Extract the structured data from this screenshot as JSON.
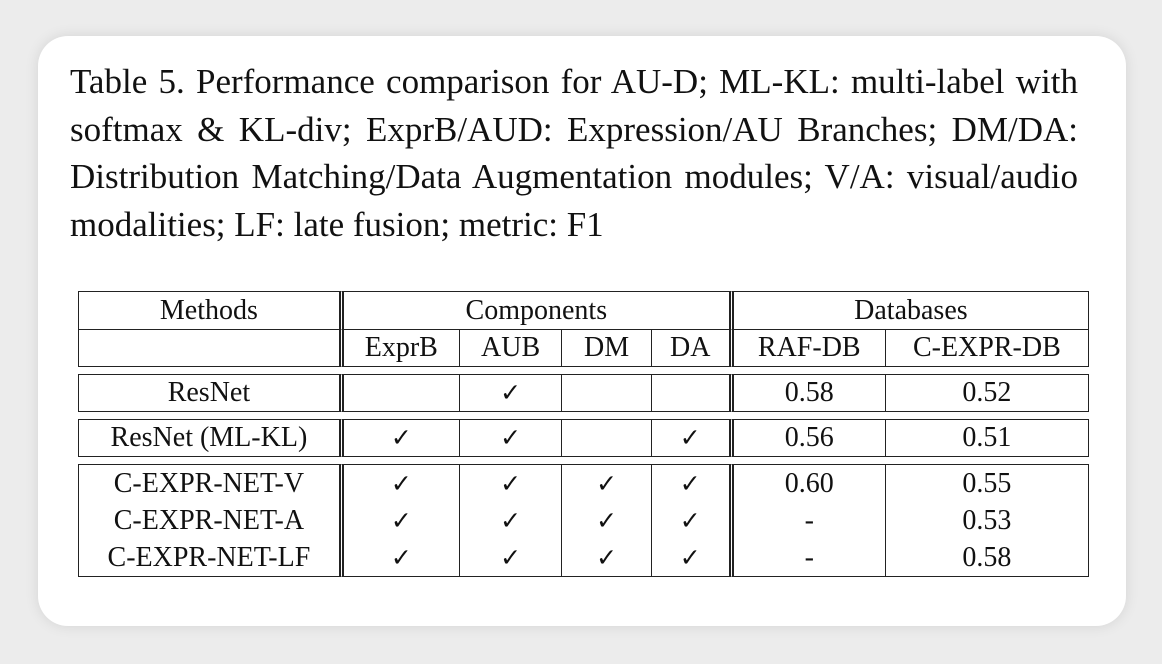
{
  "caption": "Table 5. Performance comparison for AU-D; ML-KL: multi-label with softmax & KL-div; ExprB/AUD: Expression/AU Branches; DM/DA: Distribution Matching/Data Augmentation modules; V/A: visual/audio modalities; LF: late fusion; metric: F1",
  "table": {
    "header": {
      "methods": "Methods",
      "components": "Components",
      "databases": "Databases",
      "sub": [
        "ExprB",
        "AUB",
        "DM",
        "DA",
        "RAF-DB",
        "C-EXPR-DB"
      ]
    },
    "check": "✓",
    "rows": [
      {
        "method": "ResNet",
        "exprb": "",
        "aub": "✓",
        "dm": "",
        "da": "",
        "raf": "0.58",
        "cexpr": "0.52"
      },
      {
        "method": "ResNet (ML-KL)",
        "exprb": "✓",
        "aub": "✓",
        "dm": "",
        "da": "✓",
        "raf": "0.56",
        "cexpr": "0.51"
      },
      {
        "method": "C-EXPR-NET-V",
        "exprb": "✓",
        "aub": "✓",
        "dm": "✓",
        "da": "✓",
        "raf": "0.60",
        "cexpr": "0.55"
      },
      {
        "method": "C-EXPR-NET-A",
        "exprb": "✓",
        "aub": "✓",
        "dm": "✓",
        "da": "✓",
        "raf": "-",
        "cexpr": "0.53"
      },
      {
        "method": "C-EXPR-NET-LF",
        "exprb": "✓",
        "aub": "✓",
        "dm": "✓",
        "da": "✓",
        "raf": "-",
        "cexpr": "0.58"
      }
    ]
  }
}
